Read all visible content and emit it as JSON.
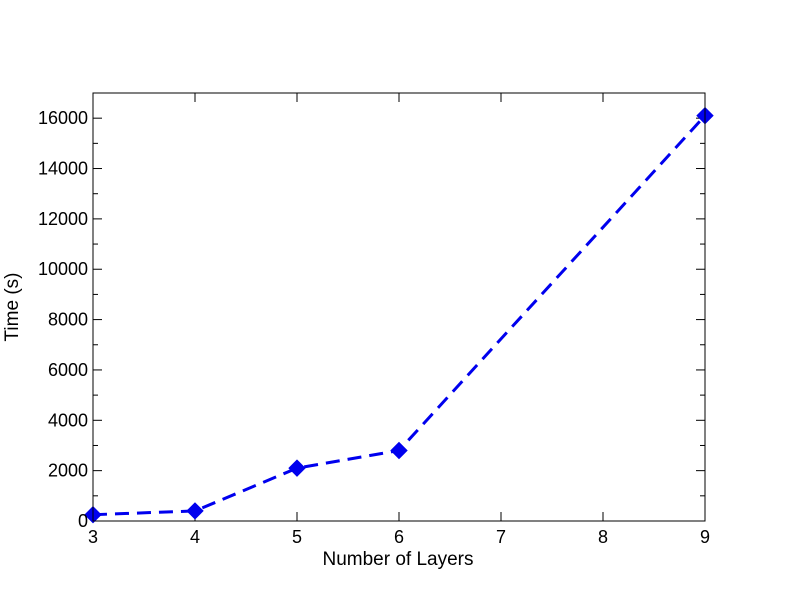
{
  "chart_data": {
    "type": "line",
    "title": "",
    "xlabel": "Number of Layers",
    "ylabel": "Time  (s)",
    "xlim": [
      3,
      9
    ],
    "ylim": [
      0,
      17000
    ],
    "xticks": [
      3,
      4,
      5,
      6,
      7,
      8,
      9
    ],
    "yticks": [
      0,
      2000,
      4000,
      6000,
      8000,
      10000,
      12000,
      14000,
      16000
    ],
    "xtick_labels": [
      "3",
      "4",
      "5",
      "6",
      "7",
      "8",
      "9"
    ],
    "ytick_labels": [
      "0",
      "2000",
      "4000",
      "6000",
      "8000",
      "10000",
      "12000",
      "14000",
      "16000"
    ],
    "grid": false,
    "series": [
      {
        "color": "#0000ee",
        "line_style": "dashed",
        "marker": "diamond",
        "x": [
          3,
          4,
          5,
          6,
          9
        ],
        "y": [
          250,
          400,
          2100,
          2800,
          16100
        ]
      }
    ]
  }
}
